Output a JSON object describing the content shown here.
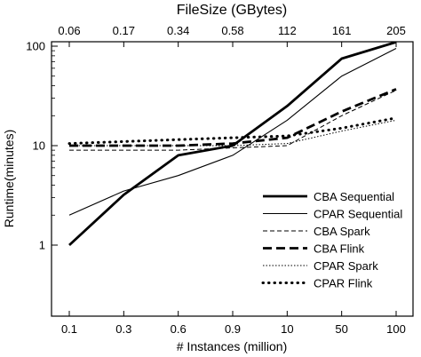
{
  "chart_data": {
    "type": "line",
    "xlabel": "# Instances (million)",
    "x2label": "FileSize (GBytes)",
    "ylabel": "Runtime(minutes)",
    "y_scale": "log",
    "ylim": [
      1,
      100
    ],
    "grid": false,
    "legend_placement": "bottom-right",
    "categories": [
      "0.1",
      "0.3",
      "0.6",
      "0.9",
      "10",
      "50",
      "100"
    ],
    "top_categories": [
      "0.06",
      "0.17",
      "0.34",
      "0.58",
      "112",
      "161",
      "205"
    ],
    "yticks": [
      {
        "label": "1",
        "value": 1
      },
      {
        "label": "10",
        "value": 10
      },
      {
        "label": "100",
        "value": 100
      }
    ],
    "series": [
      {
        "name": "CBA Sequential",
        "values": [
          1,
          3.2,
          8,
          10,
          25,
          75,
          110
        ],
        "style": "thick-solid"
      },
      {
        "name": "CPAR Sequential",
        "values": [
          2,
          3.5,
          5,
          8,
          18,
          50,
          95
        ],
        "style": "thin-solid"
      },
      {
        "name": "CBA Spark",
        "values": [
          9,
          9,
          9,
          9.5,
          10,
          20,
          36
        ],
        "style": "thin-dashed"
      },
      {
        "name": "CBA Flink",
        "values": [
          10,
          10,
          10,
          10.5,
          12,
          22,
          37
        ],
        "style": "thick-dashed"
      },
      {
        "name": "CPAR Spark",
        "values": [
          10,
          10,
          10,
          10,
          10.5,
          14,
          18
        ],
        "style": "thin-dotted"
      },
      {
        "name": "CPAR Flink",
        "values": [
          10.5,
          11,
          11.5,
          12,
          12.5,
          15,
          19
        ],
        "style": "thick-dotted"
      }
    ]
  }
}
